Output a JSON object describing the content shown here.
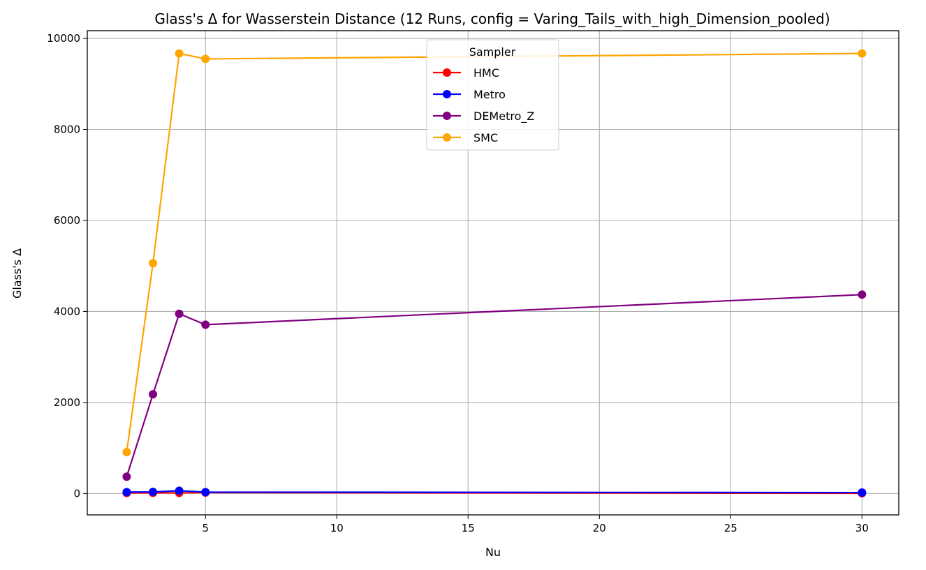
{
  "chart_data": {
    "type": "line",
    "title": "Glass's Δ for Wasserstein Distance (12 Runs, config = Varing_Tails_with_high_Dimension_pooled)",
    "xlabel": "Nu",
    "ylabel": "Glass's Δ",
    "xlim": [
      0.5,
      31.4
    ],
    "ylim": [
      -470,
      10170
    ],
    "xticks": [
      5,
      10,
      15,
      20,
      25,
      30
    ],
    "xtick_labels": [
      "5",
      "10",
      "15",
      "20",
      "25",
      "30"
    ],
    "yticks": [
      0,
      2000,
      4000,
      6000,
      8000,
      10000
    ],
    "ytick_labels": [
      "0",
      "2000",
      "4000",
      "6000",
      "8000",
      "10000"
    ],
    "grid": true,
    "legend": {
      "title": "Sampler",
      "placement": "top-center"
    },
    "x": [
      2,
      3,
      4,
      5,
      30
    ],
    "series": [
      {
        "name": "HMC",
        "color": "#ff0000",
        "values": [
          10,
          15,
          12,
          20,
          5
        ]
      },
      {
        "name": "Metro",
        "color": "#0000ff",
        "values": [
          30,
          35,
          60,
          30,
          20
        ]
      },
      {
        "name": "DEMetro_Z",
        "color": "#800080",
        "values": [
          370,
          2180,
          3950,
          3710,
          4370
        ]
      },
      {
        "name": "SMC",
        "color": "#ffa500",
        "values": [
          910,
          5060,
          9670,
          9550,
          9670
        ]
      }
    ]
  }
}
